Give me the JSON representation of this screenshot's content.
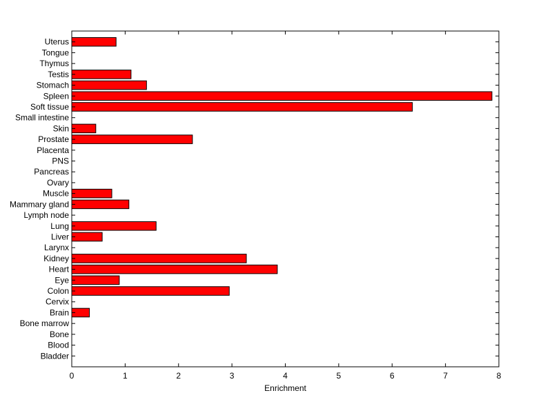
{
  "chart_data": {
    "type": "bar",
    "orientation": "horizontal",
    "title": "",
    "xlabel": "Enrichment",
    "ylabel": "",
    "xlim": [
      0,
      8
    ],
    "xticks": [
      0,
      1,
      2,
      3,
      4,
      5,
      6,
      7,
      8
    ],
    "grid": false,
    "legend": "none",
    "bar_color": "#ff0000",
    "edge_color": "#000000",
    "categories": [
      "Uterus",
      "Tongue",
      "Thymus",
      "Testis",
      "Stomach",
      "Spleen",
      "Soft tissue",
      "Small intestine",
      "Skin",
      "Prostate",
      "Placenta",
      "PNS",
      "Pancreas",
      "Ovary",
      "Muscle",
      "Mammary gland",
      "Lymph node",
      "Lung",
      "Liver",
      "Larynx",
      "Kidney",
      "Heart",
      "Eye",
      "Colon",
      "Cervix",
      "Brain",
      "Bone marrow",
      "Bone",
      "Blood",
      "Bladder"
    ],
    "values": [
      0.83,
      0,
      0,
      1.11,
      1.4,
      7.87,
      6.38,
      0,
      0.45,
      2.26,
      0,
      0,
      0,
      0,
      0.75,
      1.07,
      0,
      1.58,
      0.57,
      0,
      3.27,
      3.85,
      0.89,
      2.95,
      0,
      0.33,
      0,
      0,
      0,
      0
    ]
  }
}
